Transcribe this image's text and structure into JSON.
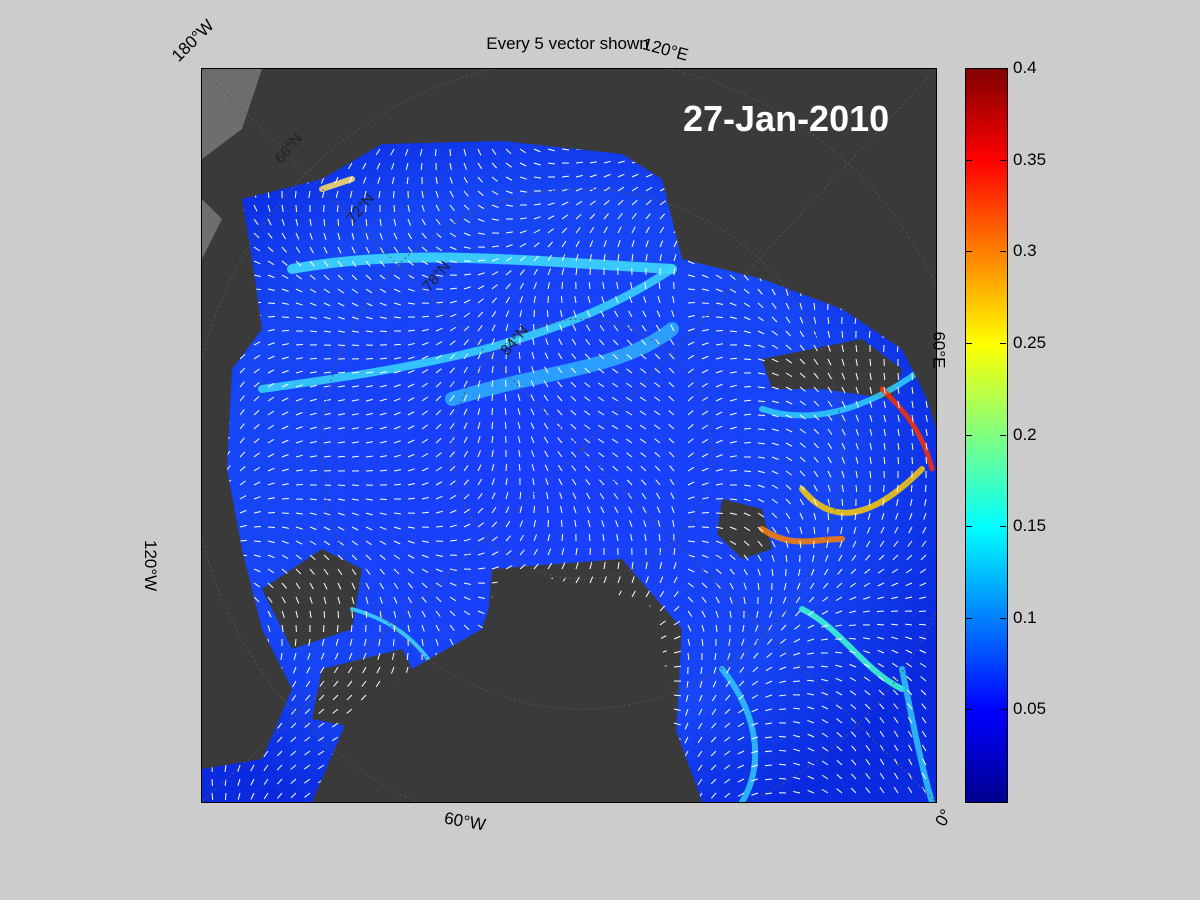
{
  "figure": {
    "title": "Every 5 vector shown",
    "date": "27-Jan-2010"
  },
  "map": {
    "type": "polar stereographic sea-ice drift field",
    "colors": {
      "land": "#3a3a3a",
      "land_mask": "#6e6e6e",
      "vector": "#ffffff",
      "ice_low": "#0000ff",
      "ice_high": "#00ffff"
    },
    "longitude_labels": [
      "180°W",
      "120°E",
      "60°E",
      "0°",
      "60°W",
      "120°W"
    ],
    "latitude_labels": [
      "66°N",
      "72°N",
      "78°N",
      "84°N"
    ]
  },
  "colorbar": {
    "range": [
      0,
      0.4
    ],
    "ticks": [
      "0.4",
      "0.35",
      "0.3",
      "0.25",
      "0.2",
      "0.15",
      "0.1",
      "0.05"
    ],
    "tick_values": [
      0.4,
      0.35,
      0.3,
      0.25,
      0.2,
      0.15,
      0.1,
      0.05
    ],
    "colormap": "jet"
  }
}
